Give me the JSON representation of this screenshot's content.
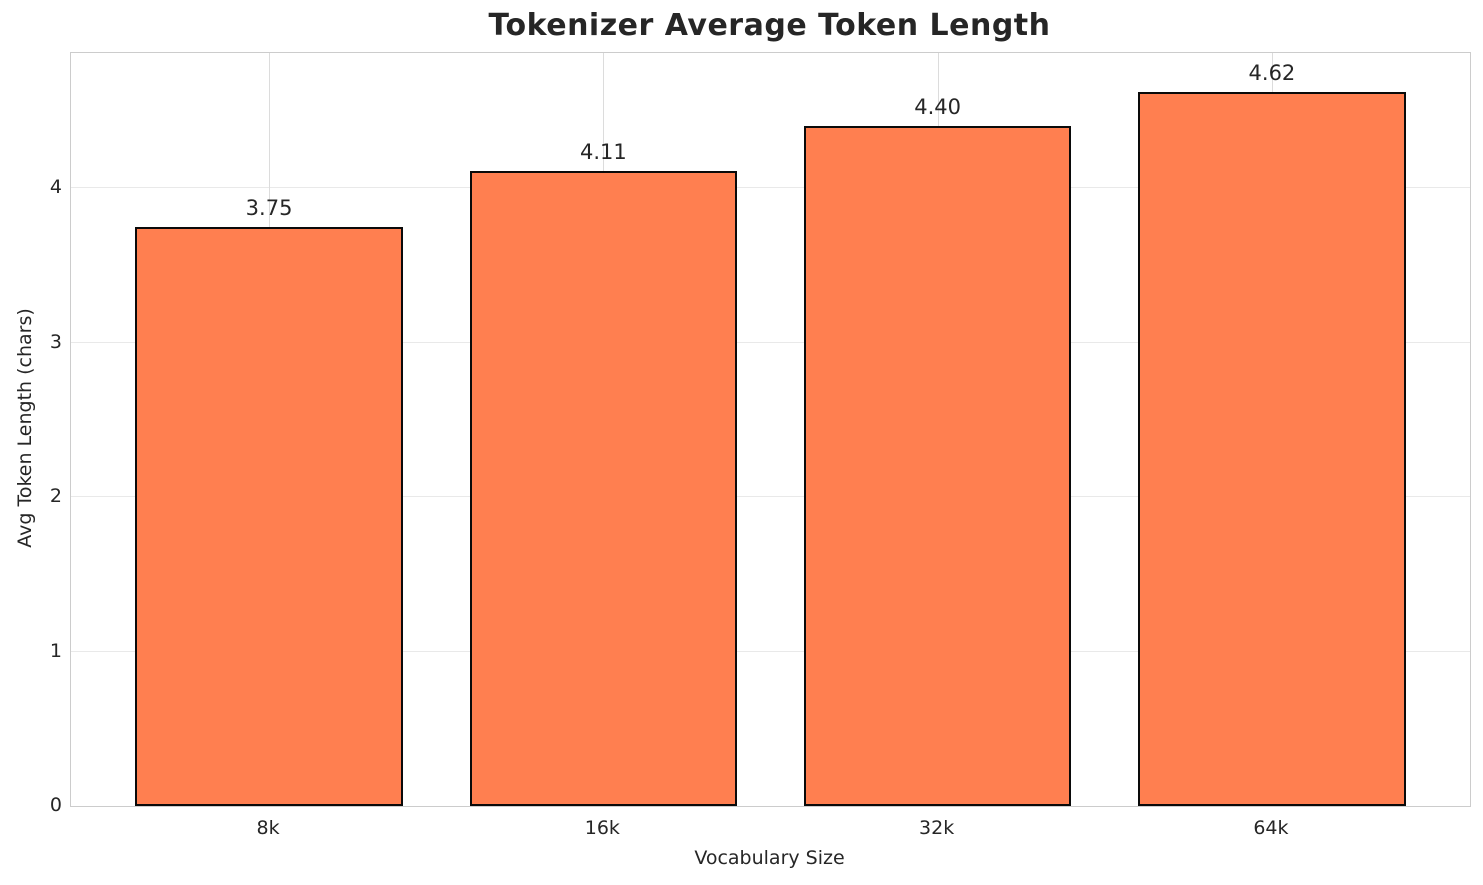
{
  "chart_data": {
    "type": "bar",
    "title": "Tokenizer Average Token Length",
    "xlabel": "Vocabulary Size",
    "ylabel": "Avg Token Length (chars)",
    "categories": [
      "8k",
      "16k",
      "32k",
      "64k"
    ],
    "values": [
      3.75,
      4.11,
      4.4,
      4.62
    ],
    "value_labels": [
      "3.75",
      "4.11",
      "4.40",
      "4.62"
    ],
    "yticks": [
      0,
      1,
      2,
      3,
      4
    ],
    "ylim": [
      0,
      4.874
    ],
    "grid": true,
    "legend": "none",
    "bar_color": "#FF7F50",
    "bar_edge_color": "#0A0A0A",
    "text_color": "#262626",
    "background": "#FFFFFF"
  }
}
